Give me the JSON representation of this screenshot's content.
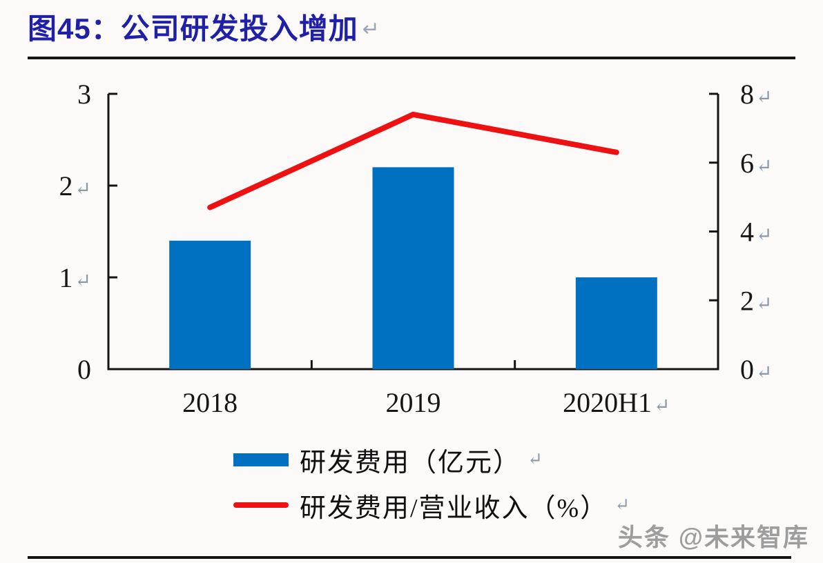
{
  "page": {
    "background": "#FBFAF9"
  },
  "header": {
    "title": "图45：公司研发投入增加",
    "return_mark": "↵",
    "title_color": "#1F1FA8"
  },
  "chart_data": {
    "type": "bar",
    "subtype": "bar+line dual axis",
    "title": "图45：公司研发投入增加",
    "categories": [
      "2018",
      "2019",
      "2020H1↵"
    ],
    "series": [
      {
        "name": "研发费用（亿元）",
        "type": "bar",
        "axis": "left",
        "color": "#0070C0",
        "values": [
          1.4,
          2.2,
          1.0
        ]
      },
      {
        "name": "研发费用/营业收入（%）",
        "type": "line",
        "axis": "right",
        "color": "#EE1111",
        "values": [
          4.7,
          7.4,
          6.3
        ]
      }
    ],
    "left_axis": {
      "range": [
        0,
        3
      ],
      "tick_values": [
        3,
        2,
        1,
        0
      ],
      "tick_labels": [
        "3",
        "2↵",
        "1↵",
        "0"
      ]
    },
    "right_axis": {
      "range": [
        0,
        8
      ],
      "tick_values": [
        8,
        6,
        4,
        2,
        0
      ],
      "tick_labels": [
        "8↵",
        "6↵",
        "4↵",
        "2↵",
        "0↵"
      ]
    },
    "grid": false,
    "legend_position": "bottom-left"
  },
  "legend": {
    "items": [
      {
        "label": "研发费用（亿元）",
        "return_mark": "↵",
        "swatch": "bar-swatch",
        "color": "#0070C0"
      },
      {
        "label": "研发费用/营业收入（%）",
        "return_mark": "↵",
        "swatch": "line-swatch",
        "color": "#EE1111"
      }
    ]
  },
  "watermark": {
    "text": "头条 @未来智库"
  }
}
